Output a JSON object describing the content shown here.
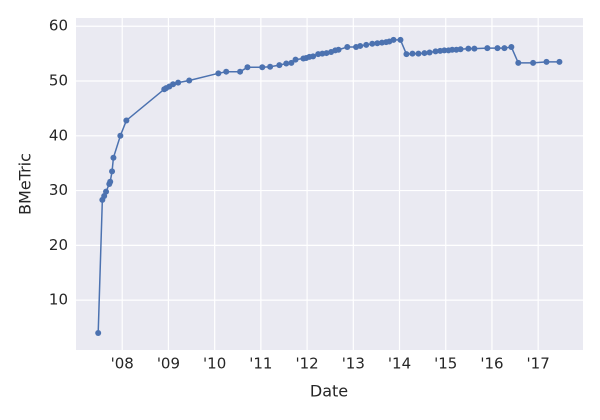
{
  "chart_data": {
    "type": "line",
    "xlabel": "Date",
    "ylabel": "BMeTric",
    "x": [
      2007.48,
      2007.57,
      2007.61,
      2007.65,
      2007.72,
      2007.74,
      2007.78,
      2007.81,
      2007.96,
      2008.09,
      2008.91,
      2008.95,
      2009.02,
      2009.1,
      2009.21,
      2009.45,
      2010.08,
      2010.25,
      2010.55,
      2010.71,
      2011.03,
      2011.2,
      2011.4,
      2011.55,
      2011.66,
      2011.75,
      2011.92,
      2011.98,
      2012.05,
      2012.13,
      2012.24,
      2012.33,
      2012.42,
      2012.52,
      2012.61,
      2012.68,
      2012.87,
      2013.06,
      2013.15,
      2013.28,
      2013.41,
      2013.52,
      2013.62,
      2013.71,
      2013.78,
      2013.87,
      2014.02,
      2014.15,
      2014.28,
      2014.41,
      2014.54,
      2014.65,
      2014.78,
      2014.88,
      2014.97,
      2015.06,
      2015.14,
      2015.23,
      2015.32,
      2015.49,
      2015.62,
      2015.9,
      2016.12,
      2016.27,
      2016.42,
      2016.57,
      2016.89,
      2017.18,
      2017.46
    ],
    "series": [
      {
        "name": "BMeTric",
        "color": "#4c72b0",
        "values": [
          4,
          28.3,
          29,
          29.8,
          31.2,
          31.6,
          33.5,
          36,
          40,
          42.8,
          48.5,
          48.7,
          49,
          49.4,
          49.7,
          50.1,
          51.4,
          51.7,
          51.7,
          52.5,
          52.5,
          52.6,
          52.9,
          53.2,
          53.3,
          53.9,
          54.1,
          54.2,
          54.4,
          54.5,
          54.9,
          55,
          55.1,
          55.3,
          55.6,
          55.7,
          56.2,
          56.2,
          56.4,
          56.6,
          56.8,
          56.9,
          57,
          57.1,
          57.2,
          57.5,
          57.5,
          54.9,
          55,
          55,
          55.1,
          55.2,
          55.4,
          55.5,
          55.6,
          55.6,
          55.7,
          55.7,
          55.8,
          55.9,
          55.9,
          56,
          56,
          56,
          56.2,
          53.3,
          53.3,
          53.5,
          53.5
        ]
      }
    ],
    "xlim": [
      2007.0,
      2017.97
    ],
    "xticks": [
      {
        "value": 2008,
        "label": "'08"
      },
      {
        "value": 2009,
        "label": "'09"
      },
      {
        "value": 2010,
        "label": "'10"
      },
      {
        "value": 2011,
        "label": "'11"
      },
      {
        "value": 2012,
        "label": "'12"
      },
      {
        "value": 2013,
        "label": "'13"
      },
      {
        "value": 2014,
        "label": "'14"
      },
      {
        "value": 2015,
        "label": "'15"
      },
      {
        "value": 2016,
        "label": "'16"
      },
      {
        "value": 2017,
        "label": "'17"
      }
    ],
    "ylim": [
      0.9,
      61.5
    ],
    "yticks": [
      10,
      20,
      30,
      40,
      50,
      60
    ],
    "grid": true
  }
}
